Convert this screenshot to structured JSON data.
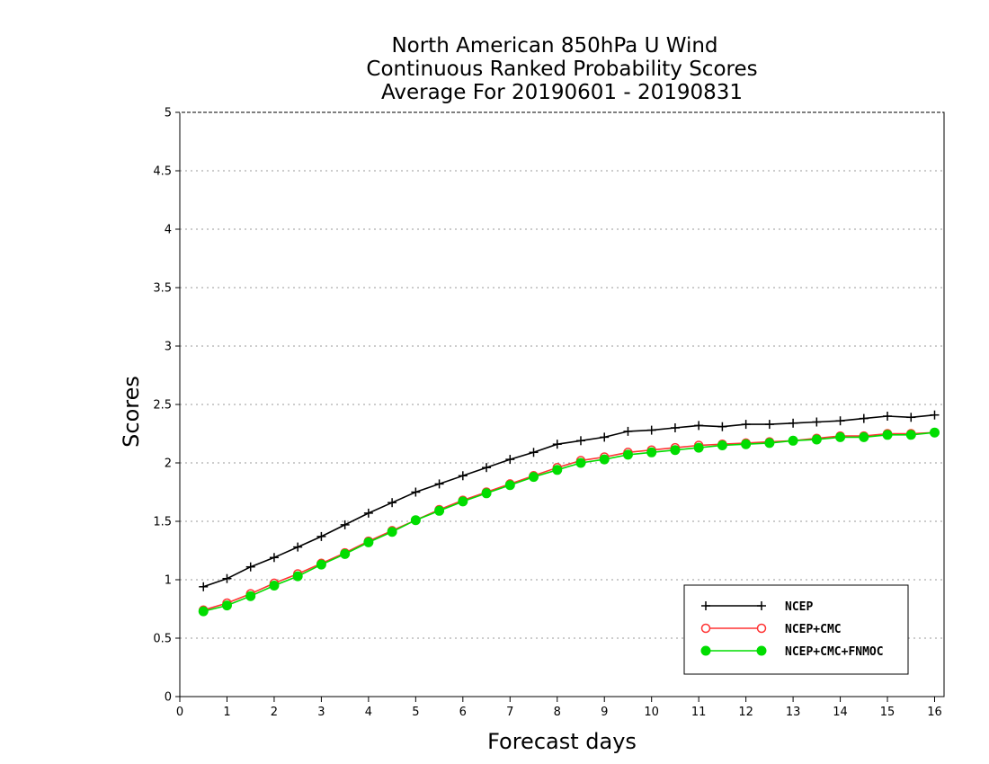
{
  "chart_data": {
    "type": "line",
    "title_lines": [
      "North American 850hPa U Wind",
      "Continuous Ranked Probability Scores",
      "Average For 20190601 - 20190831"
    ],
    "xlabel": "Forecast days",
    "ylabel": "Scores",
    "xlim": [
      0,
      16.2
    ],
    "ylim": [
      0,
      5
    ],
    "xticks": [
      "0",
      "1",
      "2",
      "3",
      "4",
      "5",
      "6",
      "7",
      "8",
      "9",
      "10",
      "11",
      "12",
      "13",
      "14",
      "15",
      "16"
    ],
    "yticks": [
      "0",
      "0.5",
      "1",
      "1.5",
      "2",
      "2.5",
      "3",
      "3.5",
      "4",
      "4.5",
      "5"
    ],
    "grid": "horizontal dotted",
    "legend_position": "bottom-right",
    "x": [
      0.5,
      1,
      1.5,
      2,
      2.5,
      3,
      3.5,
      4,
      4.5,
      5,
      5.5,
      6,
      6.5,
      7,
      7.5,
      8,
      8.5,
      9,
      9.5,
      10,
      10.5,
      11,
      11.5,
      12,
      12.5,
      13,
      13.5,
      14,
      14.5,
      15,
      15.5,
      16
    ],
    "series": [
      {
        "name": "NCEP",
        "color": "#000000",
        "marker": "plus",
        "values": [
          0.94,
          1.01,
          1.11,
          1.19,
          1.28,
          1.37,
          1.47,
          1.57,
          1.66,
          1.75,
          1.82,
          1.89,
          1.96,
          2.03,
          2.09,
          2.16,
          2.19,
          2.22,
          2.27,
          2.28,
          2.3,
          2.32,
          2.31,
          2.33,
          2.33,
          2.34,
          2.35,
          2.36,
          2.38,
          2.4,
          2.39,
          2.41
        ]
      },
      {
        "name": "NCEP+CMC",
        "color": "#ff3333",
        "marker": "open-circle",
        "values": [
          0.74,
          0.8,
          0.88,
          0.97,
          1.05,
          1.14,
          1.23,
          1.33,
          1.42,
          1.51,
          1.6,
          1.68,
          1.75,
          1.82,
          1.89,
          1.96,
          2.02,
          2.05,
          2.09,
          2.11,
          2.13,
          2.15,
          2.16,
          2.17,
          2.18,
          2.19,
          2.21,
          2.23,
          2.23,
          2.25,
          2.25,
          2.26
        ]
      },
      {
        "name": "NCEP+CMC+FNMOC",
        "color": "#00dd00",
        "marker": "filled-circle",
        "values": [
          0.73,
          0.78,
          0.86,
          0.95,
          1.03,
          1.13,
          1.22,
          1.32,
          1.41,
          1.51,
          1.59,
          1.67,
          1.74,
          1.81,
          1.88,
          1.94,
          2.0,
          2.03,
          2.07,
          2.09,
          2.11,
          2.13,
          2.15,
          2.16,
          2.17,
          2.19,
          2.2,
          2.22,
          2.22,
          2.24,
          2.24,
          2.26
        ]
      }
    ]
  }
}
